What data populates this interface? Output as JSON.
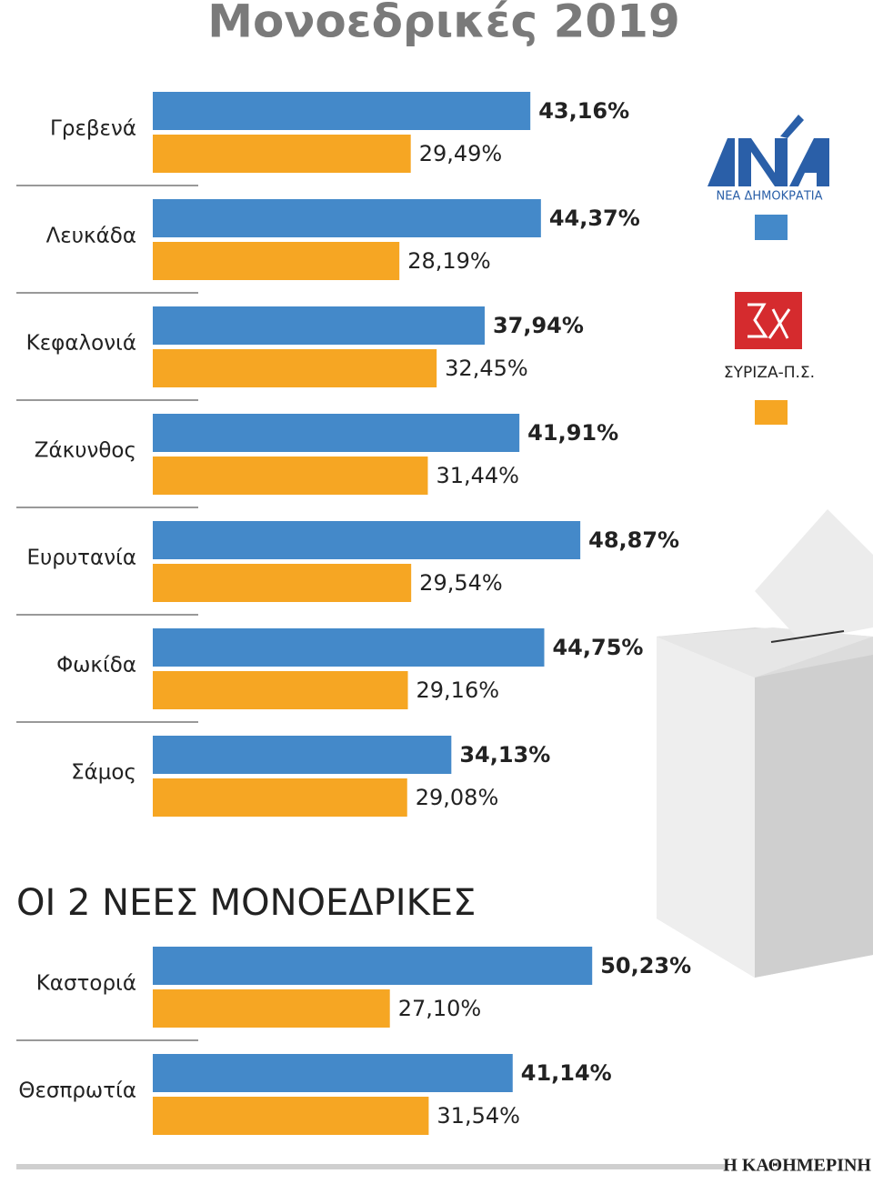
{
  "chart_data": [
    {
      "type": "bar",
      "title": "Μονοεδρικές 2019",
      "categories": [
        "Γρεβενά",
        "Λευκάδα",
        "Κεφαλονιά",
        "Ζάκυνθος",
        "Ευρυτανία",
        "Φωκίδα",
        "Σάμος"
      ],
      "series": [
        {
          "name": "ΝΕΑ ΔΗΜΟΚΡΑΤΙΑ",
          "color": "#4489c9",
          "values": [
            43.16,
            44.37,
            37.94,
            41.91,
            48.87,
            44.75,
            34.13
          ],
          "value_labels": [
            "43,16%",
            "44,37%",
            "37,94%",
            "41,91%",
            "48,87%",
            "44,75%",
            "34,13%"
          ]
        },
        {
          "name": "ΣΥΡΙΖΑ-Π.Σ.",
          "color": "#f6a623",
          "values": [
            29.49,
            28.19,
            32.45,
            31.44,
            29.54,
            29.16,
            29.08
          ],
          "value_labels": [
            "29,49%",
            "28,19%",
            "32,45%",
            "31,44%",
            "29,54%",
            "29,16%",
            "29,08%"
          ]
        }
      ]
    },
    {
      "type": "bar",
      "title": "ΟΙ 2 ΝΕΕΣ ΜΟΝΟΕΔΡΙΚΕΣ",
      "categories": [
        "Καστοριά",
        "Θεσπρωτία"
      ],
      "series": [
        {
          "color": "#4489c9",
          "values": [
            50.23,
            41.14
          ],
          "value_labels": [
            "50,23%",
            "41,14%"
          ]
        },
        {
          "color": "#f6a623",
          "values": [
            27.1,
            31.54
          ],
          "value_labels": [
            "27,10%",
            "31,54%"
          ]
        }
      ]
    }
  ],
  "source": "Η ΚΑΘΗΜΕΡΙΝΗ"
}
